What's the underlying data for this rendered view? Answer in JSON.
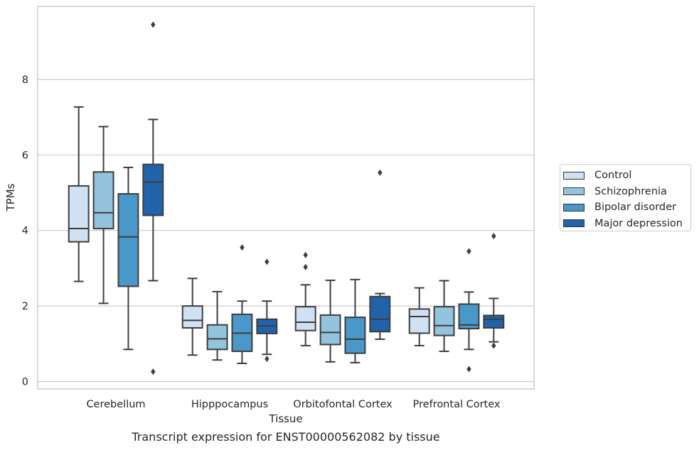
{
  "caption": "Transcript expression for ENST00000562082 by tissue",
  "chart_data": {
    "type": "box",
    "xlabel": "Tissue",
    "ylabel": "TPMs",
    "ylim": [
      -0.2,
      9.9
    ],
    "yticks": [
      0,
      2,
      4,
      6,
      8
    ],
    "grid": "horizontal",
    "legend_position": "right",
    "categories": [
      "Cerebellum",
      "Hipppocampus",
      "Orbitofontal Cortex",
      "Prefrontal Cortex"
    ],
    "series": [
      {
        "name": "Control",
        "color": "#cfe1f2",
        "boxes": [
          {
            "whislo": 2.65,
            "q1": 3.7,
            "med": 4.05,
            "q3": 5.18,
            "whishi": 7.27,
            "fliers": []
          },
          {
            "whislo": 0.7,
            "q1": 1.42,
            "med": 1.62,
            "q3": 2.0,
            "whishi": 2.73,
            "fliers": []
          },
          {
            "whislo": 0.95,
            "q1": 1.35,
            "med": 1.57,
            "q3": 1.98,
            "whishi": 2.56,
            "fliers": [
              3.35,
              3.03
            ]
          },
          {
            "whislo": 0.95,
            "q1": 1.28,
            "med": 1.72,
            "q3": 1.92,
            "whishi": 2.48,
            "fliers": []
          }
        ]
      },
      {
        "name": "Schizophrenia",
        "color": "#93c4de",
        "boxes": [
          {
            "whislo": 2.07,
            "q1": 4.05,
            "med": 4.47,
            "q3": 5.55,
            "whishi": 6.75,
            "fliers": []
          },
          {
            "whislo": 0.57,
            "q1": 0.85,
            "med": 1.13,
            "q3": 1.5,
            "whishi": 2.38,
            "fliers": []
          },
          {
            "whislo": 0.52,
            "q1": 0.98,
            "med": 1.3,
            "q3": 1.76,
            "whishi": 2.68,
            "fliers": []
          },
          {
            "whislo": 0.8,
            "q1": 1.22,
            "med": 1.48,
            "q3": 1.98,
            "whishi": 2.67,
            "fliers": []
          }
        ]
      },
      {
        "name": "Bipolar disorder",
        "color": "#4a98c9",
        "boxes": [
          {
            "whislo": 0.85,
            "q1": 2.52,
            "med": 3.83,
            "q3": 4.97,
            "whishi": 5.67,
            "fliers": []
          },
          {
            "whislo": 0.48,
            "q1": 0.8,
            "med": 1.28,
            "q3": 1.78,
            "whishi": 2.13,
            "fliers": [
              3.55
            ]
          },
          {
            "whislo": 0.5,
            "q1": 0.75,
            "med": 1.12,
            "q3": 1.7,
            "whishi": 2.7,
            "fliers": []
          },
          {
            "whislo": 0.85,
            "q1": 1.4,
            "med": 1.5,
            "q3": 2.05,
            "whishi": 2.37,
            "fliers": [
              3.45,
              0.33
            ]
          }
        ]
      },
      {
        "name": "Major depression",
        "color": "#2163aa",
        "boxes": [
          {
            "whislo": 2.67,
            "q1": 4.4,
            "med": 5.28,
            "q3": 5.75,
            "whishi": 6.94,
            "fliers": [
              9.45,
              0.26
            ]
          },
          {
            "whislo": 0.72,
            "q1": 1.27,
            "med": 1.47,
            "q3": 1.65,
            "whishi": 2.13,
            "fliers": [
              3.17,
              0.6
            ]
          },
          {
            "whislo": 1.12,
            "q1": 1.32,
            "med": 1.65,
            "q3": 2.25,
            "whishi": 2.33,
            "fliers": [
              5.53
            ]
          },
          {
            "whislo": 1.05,
            "q1": 1.42,
            "med": 1.65,
            "q3": 1.75,
            "whishi": 2.2,
            "fliers": [
              3.85,
              0.95
            ]
          }
        ]
      }
    ]
  }
}
